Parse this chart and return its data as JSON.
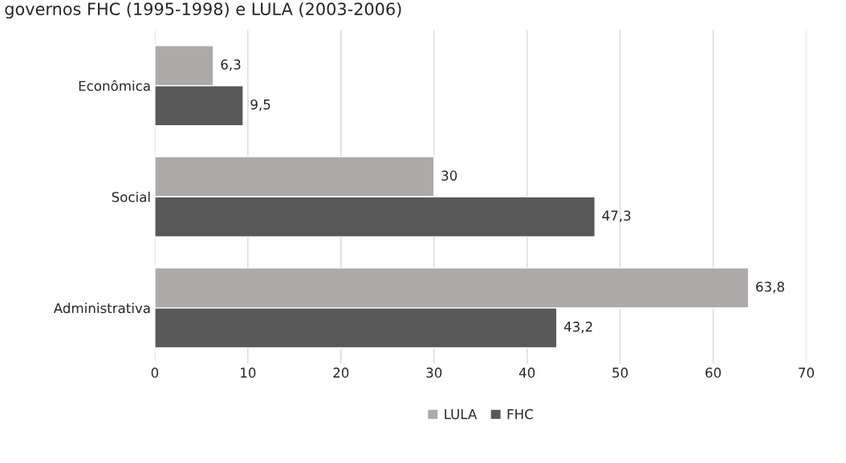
{
  "chart_data": {
    "type": "bar",
    "orientation": "horizontal",
    "title": "governos FHC (1995-1998) e LULA (2003-2006)",
    "categories": [
      "Econômica",
      "Social",
      "Administrativa"
    ],
    "series": [
      {
        "name": "LULA",
        "color": "#aeaaaa",
        "values": [
          6.3,
          30,
          63.8
        ],
        "value_labels": [
          "6,3",
          "30",
          "63,8"
        ]
      },
      {
        "name": "FHC",
        "color": "#595959",
        "values": [
          9.5,
          47.3,
          43.2
        ],
        "value_labels": [
          "9,5",
          "47,3",
          "43,2"
        ]
      }
    ],
    "xlim": [
      0,
      70
    ],
    "xticks": [
      0,
      10,
      20,
      30,
      40,
      50,
      60,
      70
    ],
    "grid": "x",
    "legend": "bottom"
  }
}
